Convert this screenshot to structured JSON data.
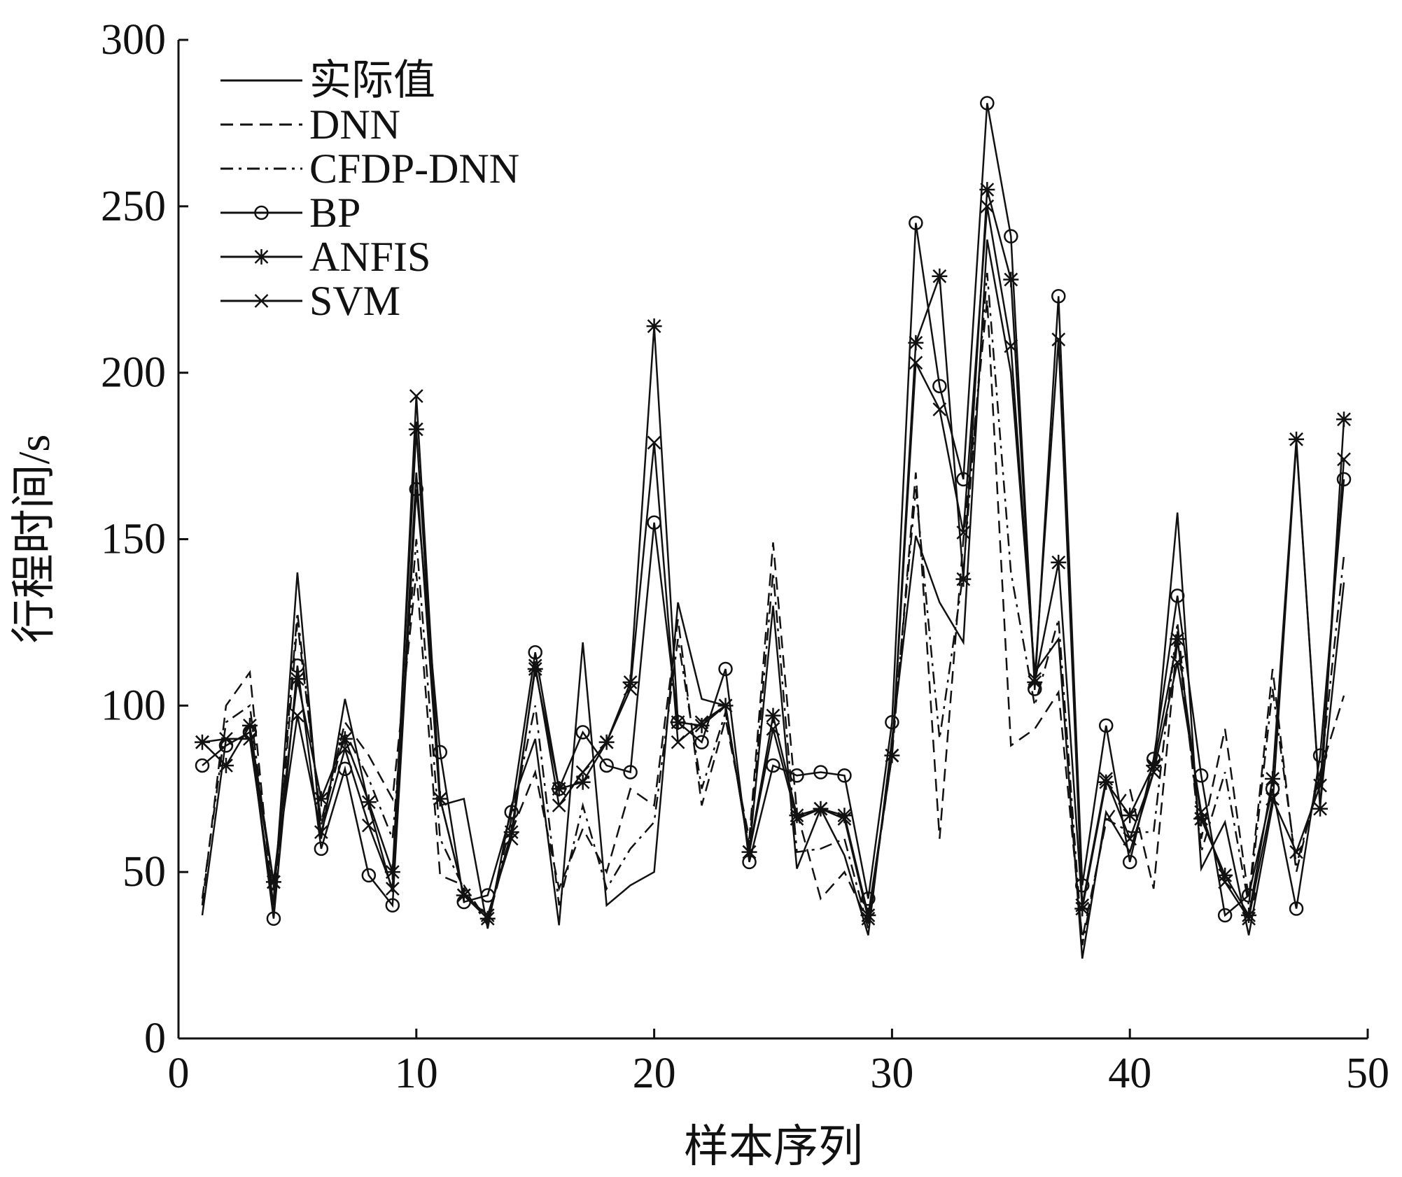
{
  "chart_data": {
    "type": "line",
    "xlabel": "样本序列",
    "ylabel": "行程时间/s",
    "xlim": [
      0,
      50
    ],
    "ylim": [
      0,
      300
    ],
    "xticks": [
      0,
      10,
      20,
      30,
      40,
      50
    ],
    "yticks": [
      0,
      50,
      100,
      150,
      200,
      250,
      300
    ],
    "legend": "upper left",
    "grid": false,
    "x": [
      1,
      2,
      3,
      4,
      5,
      6,
      7,
      8,
      9,
      10,
      11,
      12,
      13,
      14,
      15,
      16,
      17,
      18,
      19,
      20,
      21,
      22,
      23,
      24,
      25,
      26,
      27,
      28,
      29,
      30,
      31,
      32,
      33,
      34,
      35,
      36,
      37,
      38,
      39,
      40,
      41,
      42,
      43,
      44,
      45,
      46,
      47,
      48,
      49
    ],
    "series": [
      {
        "name": "实际值",
        "color": "#111111",
        "style": "solid",
        "marker": "none",
        "values": [
          37,
          90,
          90,
          40,
          140,
          60,
          102,
          70,
          44,
          170,
          70,
          72,
          33,
          70,
          90,
          34,
          119,
          40,
          46,
          50,
          131,
          102,
          100,
          56,
          130,
          51,
          69,
          55,
          31,
          90,
          151,
          131,
          119,
          240,
          200,
          110,
          120,
          24,
          68,
          56,
          80,
          158,
          51,
          65,
          31,
          70,
          179,
          70,
          137
        ]
      },
      {
        "name": "DNN",
        "color": "#111111",
        "style": "dashed",
        "marker": "none",
        "values": [
          40,
          100,
          110,
          38,
          125,
          65,
          95,
          85,
          72,
          140,
          49,
          46,
          35,
          62,
          80,
          45,
          63,
          50,
          75,
          70,
          126,
          70,
          96,
          60,
          149,
          68,
          42,
          50,
          35,
          85,
          170,
          60,
          150,
          222,
          88,
          93,
          104,
          30,
          65,
          75,
          45,
          120,
          60,
          93,
          42,
          111,
          50,
          80,
          103
        ]
      },
      {
        "name": "CFDP-DNN",
        "color": "#111111",
        "style": "dashdot",
        "marker": "none",
        "values": [
          42,
          95,
          100,
          42,
          128,
          64,
          92,
          78,
          60,
          150,
          60,
          45,
          34,
          66,
          100,
          40,
          70,
          45,
          57,
          65,
          120,
          75,
          98,
          58,
          140,
          56,
          57,
          60,
          33,
          88,
          165,
          90,
          140,
          230,
          140,
          100,
          126,
          28,
          66,
          62,
          62,
          125,
          56,
          80,
          40,
          105,
          52,
          78,
          145
        ]
      },
      {
        "name": "BP",
        "color": "#111111",
        "style": "solid",
        "marker": "circle",
        "values": [
          82,
          88,
          92,
          36,
          112,
          57,
          81,
          49,
          40,
          165,
          86,
          41,
          43,
          68,
          116,
          75,
          92,
          82,
          80,
          155,
          95,
          89,
          111,
          53,
          82,
          79,
          80,
          79,
          42,
          95,
          245,
          196,
          168,
          281,
          241,
          105,
          223,
          46,
          94,
          53,
          84,
          133,
          79,
          37,
          43,
          75,
          39,
          85,
          168
        ]
      },
      {
        "name": "ANFIS",
        "color": "#111111",
        "style": "solid",
        "marker": "star",
        "values": [
          89,
          82,
          94,
          47,
          108,
          72,
          90,
          71,
          50,
          183,
          72,
          43,
          36,
          62,
          111,
          75,
          77,
          89,
          107,
          214,
          95,
          94,
          100,
          56,
          97,
          67,
          69,
          67,
          37,
          85,
          209,
          229,
          138,
          255,
          228,
          107,
          143,
          39,
          77,
          67,
          82,
          120,
          66,
          49,
          37,
          78,
          180,
          69,
          186
        ]
      },
      {
        "name": "SVM",
        "color": "#111111",
        "style": "solid",
        "marker": "x",
        "values": [
          89,
          90,
          90,
          47,
          97,
          62,
          87,
          64,
          45,
          193,
          72,
          43,
          37,
          60,
          112,
          70,
          80,
          89,
          105,
          179,
          89,
          95,
          100,
          56,
          93,
          66,
          69,
          66,
          36,
          85,
          203,
          189,
          152,
          250,
          208,
          108,
          210,
          40,
          78,
          60,
          80,
          113,
          68,
          47,
          36,
          72,
          56,
          76,
          174
        ]
      }
    ]
  }
}
